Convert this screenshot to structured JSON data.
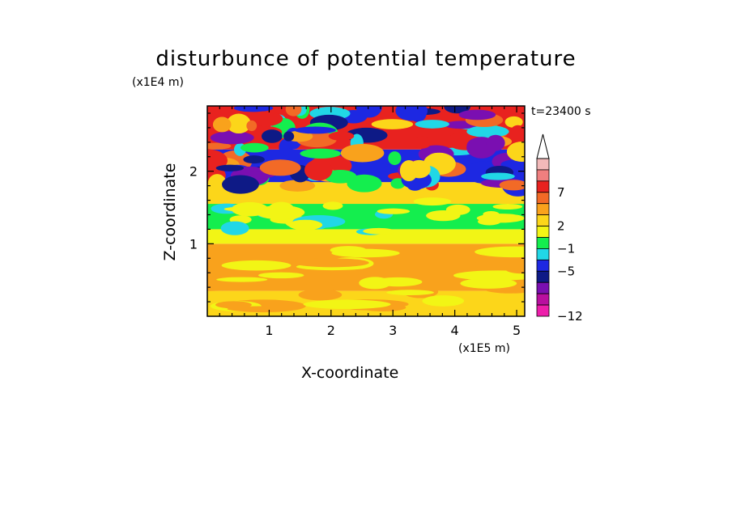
{
  "chart_data": {
    "type": "heatmap",
    "title": "disturbunce of potential temperature",
    "xlabel": "X-coordinate",
    "ylabel": "Z-coordinate",
    "x_unit": "(x1E5 m)",
    "y_unit": "(x1E4 m)",
    "time_label": "t=23400 s",
    "xlim": [
      0,
      5.13
    ],
    "ylim": [
      0,
      2.9
    ],
    "x_ticks": [
      "1",
      "2",
      "3",
      "4",
      "5"
    ],
    "y_ticks": [
      "1",
      "2"
    ],
    "colorbar": {
      "labels": [
        "7",
        "2",
        "−1",
        "−5",
        "−12"
      ],
      "label_values": [
        7,
        2,
        -1,
        -5,
        -12
      ],
      "extend": "max",
      "levels_top_to_bottom": [
        {
          "color": "#f2b9b9"
        },
        {
          "color": "#ef7f7f"
        },
        {
          "color": "#e8221f"
        },
        {
          "color": "#f26a26"
        },
        {
          "color": "#f9a21c"
        },
        {
          "color": "#fcd61a"
        },
        {
          "color": "#f2f515"
        },
        {
          "color": "#14ee4e"
        },
        {
          "color": "#21d7e6"
        },
        {
          "color": "#1d28e2"
        },
        {
          "color": "#0e1a86"
        },
        {
          "color": "#7a0fb1"
        },
        {
          "color": "#b90f9f"
        },
        {
          "color": "#ed1eab"
        }
      ]
    },
    "bands_bottom_to_top": [
      {
        "z_range": [
          0,
          0.35
        ],
        "dominant_level": "5",
        "color": "#fcd61a",
        "note": "near-surface yellow/orange mix"
      },
      {
        "z_range": [
          0.35,
          1.0
        ],
        "dominant_level": "3 to 5",
        "color": "#f9a21c",
        "note": "alternating yellow and orange layers"
      },
      {
        "z_range": [
          1.0,
          1.2
        ],
        "dominant_level": "1",
        "color": "#f2f515"
      },
      {
        "z_range": [
          1.2,
          1.55
        ],
        "dominant_level": "0",
        "color": "#14ee4e"
      },
      {
        "z_range": [
          1.55,
          1.85
        ],
        "dominant_level": "1 to 4",
        "color": "#fcd61a"
      },
      {
        "z_range": [
          1.85,
          2.3
        ],
        "dominant_level": "-5 to 2",
        "color": "#1d28e2",
        "note": "wavy blue and yellow structures"
      },
      {
        "z_range": [
          2.3,
          2.9
        ],
        "dominant_level": "-5 to 9",
        "color": "#e8221f",
        "note": "strong red/blue wave features"
      }
    ]
  }
}
